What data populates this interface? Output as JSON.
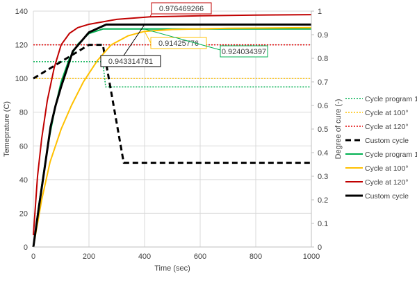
{
  "chart_data": {
    "type": "line",
    "xlabel": "Time (sec)",
    "ylabel": "Temeprature (C)",
    "y2label": "Degree of cure (-)",
    "xlim": [
      0,
      1000
    ],
    "ylim": [
      0,
      140
    ],
    "y2lim": [
      0,
      1
    ],
    "xticks": [
      "0",
      "200",
      "400",
      "600",
      "800",
      "1000"
    ],
    "yticks": [
      "0",
      "20",
      "40",
      "60",
      "80",
      "100",
      "120",
      "140"
    ],
    "y2ticks": [
      "0",
      "0.1",
      "0.2",
      "0.3",
      "0.4",
      "0.5",
      "0.6",
      "0.7",
      "0.8",
      "0.9",
      "1"
    ],
    "grid": true,
    "legend_position": "right",
    "series": [
      {
        "name": "Cycle program 1",
        "axis": "left",
        "style": "dotted",
        "color": "#00b050",
        "points": [
          [
            0,
            110
          ],
          [
            250,
            110
          ],
          [
            260,
            95
          ],
          [
            1000,
            95
          ]
        ]
      },
      {
        "name": "Cycle at 100°",
        "axis": "left",
        "style": "dotted",
        "color": "#ffc000",
        "points": [
          [
            0,
            100
          ],
          [
            1000,
            100
          ]
        ]
      },
      {
        "name": "Cycle at 120°",
        "axis": "left",
        "style": "dotted",
        "color": "#e00000",
        "points": [
          [
            0,
            120
          ],
          [
            1000,
            120
          ]
        ]
      },
      {
        "name": "Custom cycle",
        "axis": "left",
        "style": "dashed",
        "color": "#000000",
        "points": [
          [
            0,
            100
          ],
          [
            200,
            120
          ],
          [
            250,
            120
          ],
          [
            325,
            50
          ],
          [
            1000,
            50
          ]
        ]
      },
      {
        "name": "Cycle program 1",
        "axis": "right",
        "style": "solid",
        "color": "#00b050",
        "points": [
          [
            0,
            0
          ],
          [
            20,
            0.18
          ],
          [
            40,
            0.34
          ],
          [
            60,
            0.48
          ],
          [
            80,
            0.6
          ],
          [
            100,
            0.7
          ],
          [
            130,
            0.8
          ],
          [
            160,
            0.86
          ],
          [
            200,
            0.905
          ],
          [
            250,
            0.924
          ],
          [
            1000,
            0.924
          ]
        ]
      },
      {
        "name": "Cycle at 100°",
        "axis": "right",
        "style": "solid",
        "color": "#ffc000",
        "points": [
          [
            0,
            0
          ],
          [
            30,
            0.2
          ],
          [
            60,
            0.36
          ],
          [
            100,
            0.5
          ],
          [
            137,
            0.6
          ],
          [
            180,
            0.7
          ],
          [
            230,
            0.79
          ],
          [
            280,
            0.857
          ],
          [
            340,
            0.895
          ],
          [
            400,
            0.914
          ],
          [
            500,
            0.922
          ],
          [
            700,
            0.927
          ],
          [
            1000,
            0.93
          ]
        ]
      },
      {
        "name": "Cycle at 120°",
        "axis": "right",
        "style": "solid",
        "color": "#c00000",
        "points": [
          [
            0,
            0.05
          ],
          [
            15,
            0.3
          ],
          [
            30,
            0.46
          ],
          [
            50,
            0.62
          ],
          [
            75,
            0.76
          ],
          [
            100,
            0.857
          ],
          [
            130,
            0.906
          ],
          [
            160,
            0.93
          ],
          [
            200,
            0.944
          ],
          [
            300,
            0.965
          ],
          [
            420,
            0.976
          ],
          [
            600,
            0.98
          ],
          [
            800,
            0.983
          ],
          [
            1000,
            0.985
          ]
        ]
      },
      {
        "name": "Custom cycle",
        "axis": "right",
        "style": "solid",
        "color": "#000000",
        "points": [
          [
            0,
            0
          ],
          [
            20,
            0.17
          ],
          [
            40,
            0.33
          ],
          [
            62,
            0.51
          ],
          [
            80,
            0.6
          ],
          [
            100,
            0.68
          ],
          [
            142,
            0.83
          ],
          [
            200,
            0.91
          ],
          [
            262,
            0.943
          ],
          [
            1000,
            0.943
          ]
        ]
      }
    ],
    "annotations": [
      {
        "text": "0.976469266",
        "color": "#c00000",
        "x": 420,
        "y": 0.976
      },
      {
        "text": "0.943314781",
        "color": "#000000",
        "x": 400,
        "y": 0.943
      },
      {
        "text": "0.91425776",
        "color": "#ffc000",
        "x": 400,
        "y": 0.914
      },
      {
        "text": "0.924034397",
        "color": "#00b050",
        "x": 400,
        "y": 0.924
      }
    ]
  }
}
